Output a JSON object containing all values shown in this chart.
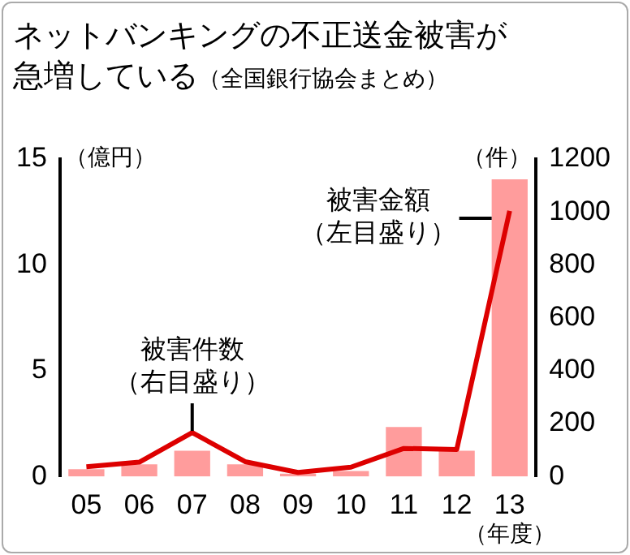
{
  "chart_data": {
    "type": "bar",
    "title": "ネットバンキングの不正送金被害が急増している",
    "subtitle": "（全国銀行協会まとめ）",
    "ylabel": "（億円）",
    "y2label": "（件）",
    "xlabel": "（年度）",
    "categories": [
      "05",
      "06",
      "07",
      "08",
      "09",
      "10",
      "11",
      "12",
      "13"
    ],
    "series": [
      {
        "name": "被害金額（左目盛り）",
        "color": "#ff9c9c",
        "values": [
          0.34,
          0.57,
          1.22,
          0.57,
          0.13,
          0.26,
          2.34,
          1.22,
          14.04
        ]
      },
      {
        "name": "被害件数（右目盛り）",
        "type": "line",
        "axis": "y2",
        "color": "#dd0000",
        "values": [
          37,
          54,
          166,
          56,
          15,
          35,
          106,
          102,
          1004
        ]
      }
    ],
    "ylim": [
      0,
      15
    ],
    "yticks": [
      0,
      5,
      10,
      15
    ],
    "y2lim": [
      0,
      1200
    ],
    "y2ticks": [
      0,
      200,
      400,
      600,
      800,
      1000,
      1200
    ]
  }
}
